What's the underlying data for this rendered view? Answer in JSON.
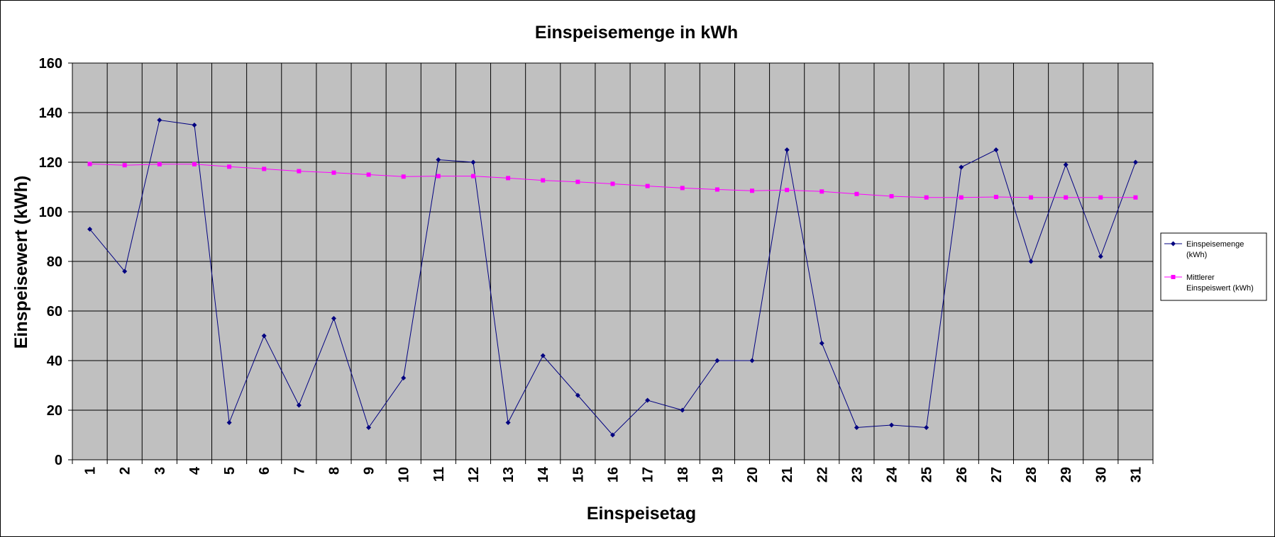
{
  "chart_data": {
    "type": "line",
    "title": "Einspeisemenge in kWh",
    "xlabel": "Einspeisetag",
    "ylabel": "Einspeisewert  (kWh)",
    "ylim": [
      0,
      160
    ],
    "yticks": [
      0,
      20,
      40,
      60,
      80,
      100,
      120,
      140,
      160
    ],
    "grid": true,
    "legend_position": "right",
    "plot_background": "#c0c0c0",
    "categories": [
      "1",
      "2",
      "3",
      "4",
      "5",
      "6",
      "7",
      "8",
      "9",
      "10",
      "11",
      "12",
      "13",
      "14",
      "15",
      "16",
      "17",
      "18",
      "19",
      "20",
      "21",
      "22",
      "23",
      "24",
      "25",
      "26",
      "27",
      "28",
      "29",
      "30",
      "31"
    ],
    "series": [
      {
        "name": "Einspeisemenge (kWh)",
        "legend_lines": [
          "Einspeisemenge",
          "(kWh)"
        ],
        "color": "#000080",
        "marker": "diamond",
        "values": [
          93,
          76,
          137,
          135,
          15,
          50,
          22,
          57,
          13,
          33,
          121,
          120,
          15,
          42,
          26,
          10,
          24,
          20,
          40,
          40,
          125,
          47,
          13,
          14,
          13,
          118,
          125,
          80,
          119,
          82,
          120
        ]
      },
      {
        "name": "Mittlerer Einspeiswert (kWh)",
        "legend_lines": [
          "Mittlerer",
          "Einspeiswert (kWh)"
        ],
        "color": "#ff00ff",
        "marker": "square",
        "values": [
          119.3,
          118.8,
          119.2,
          119.2,
          118.2,
          117.3,
          116.4,
          115.8,
          115.0,
          114.2,
          114.4,
          114.4,
          113.6,
          112.7,
          112.1,
          111.3,
          110.4,
          109.6,
          109.0,
          108.5,
          108.8,
          108.2,
          107.2,
          106.3,
          105.8,
          105.8,
          106.0,
          105.8,
          105.8,
          105.8,
          105.8
        ]
      }
    ]
  }
}
